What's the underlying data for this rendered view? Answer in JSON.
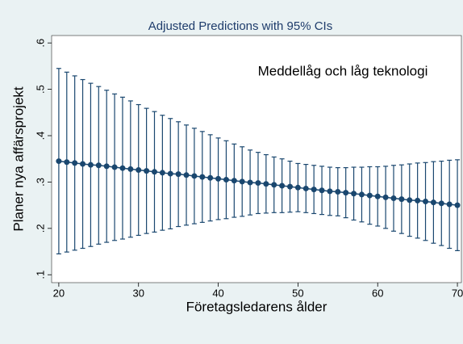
{
  "chart_data": {
    "type": "errorbar_line",
    "title": "Adjusted Predictions with 95% CIs",
    "annotation": "Meddellåg och låg teknologi",
    "xlabel": "Företagsledarens ålder",
    "ylabel": "Planer nya affärsprojekt",
    "color": "#1a476f",
    "grid": false,
    "x": [
      20,
      21,
      22,
      23,
      24,
      25,
      26,
      27,
      28,
      29,
      30,
      31,
      32,
      33,
      34,
      35,
      36,
      37,
      38,
      39,
      40,
      41,
      42,
      43,
      44,
      45,
      46,
      47,
      48,
      49,
      50,
      51,
      52,
      53,
      54,
      55,
      56,
      57,
      58,
      59,
      60,
      61,
      62,
      63,
      64,
      65,
      66,
      67,
      68,
      69,
      70
    ],
    "values": [
      0.345,
      0.343,
      0.341,
      0.339,
      0.337,
      0.336,
      0.334,
      0.332,
      0.33,
      0.328,
      0.326,
      0.324,
      0.322,
      0.32,
      0.318,
      0.317,
      0.315,
      0.313,
      0.311,
      0.309,
      0.307,
      0.305,
      0.303,
      0.301,
      0.299,
      0.298,
      0.296,
      0.294,
      0.292,
      0.29,
      0.288,
      0.286,
      0.284,
      0.282,
      0.28,
      0.279,
      0.277,
      0.275,
      0.273,
      0.271,
      0.269,
      0.267,
      0.265,
      0.263,
      0.261,
      0.26,
      0.258,
      0.256,
      0.254,
      0.252,
      0.25
    ],
    "upper": [
      0.545,
      0.537,
      0.529,
      0.521,
      0.513,
      0.506,
      0.498,
      0.49,
      0.483,
      0.475,
      0.467,
      0.459,
      0.452,
      0.444,
      0.437,
      0.43,
      0.423,
      0.416,
      0.409,
      0.402,
      0.395,
      0.389,
      0.382,
      0.376,
      0.369,
      0.364,
      0.359,
      0.354,
      0.35,
      0.345,
      0.34,
      0.338,
      0.336,
      0.334,
      0.332,
      0.331,
      0.331,
      0.332,
      0.332,
      0.333,
      0.333,
      0.334,
      0.336,
      0.337,
      0.339,
      0.341,
      0.342,
      0.344,
      0.345,
      0.347,
      0.348
    ],
    "lower": [
      0.145,
      0.149,
      0.153,
      0.157,
      0.161,
      0.166,
      0.17,
      0.174,
      0.177,
      0.181,
      0.185,
      0.189,
      0.192,
      0.196,
      0.199,
      0.204,
      0.207,
      0.21,
      0.213,
      0.216,
      0.219,
      0.221,
      0.224,
      0.226,
      0.229,
      0.232,
      0.233,
      0.234,
      0.234,
      0.235,
      0.236,
      0.234,
      0.232,
      0.23,
      0.228,
      0.227,
      0.223,
      0.218,
      0.214,
      0.209,
      0.205,
      0.2,
      0.194,
      0.189,
      0.183,
      0.179,
      0.174,
      0.168,
      0.163,
      0.157,
      0.152
    ],
    "xlim": [
      19.1,
      70.5
    ],
    "xticks": [
      20,
      30,
      40,
      50,
      60,
      70
    ],
    "ylim": [
      0.083,
      0.616
    ],
    "yticks": [
      {
        "value": 0.1,
        "label": ".1"
      },
      {
        "value": 0.2,
        "label": ".2"
      },
      {
        "value": 0.3,
        "label": ".3"
      },
      {
        "value": 0.4,
        "label": ".4"
      },
      {
        "value": 0.5,
        "label": ".5"
      },
      {
        "value": 0.6,
        "label": ".6"
      }
    ]
  }
}
